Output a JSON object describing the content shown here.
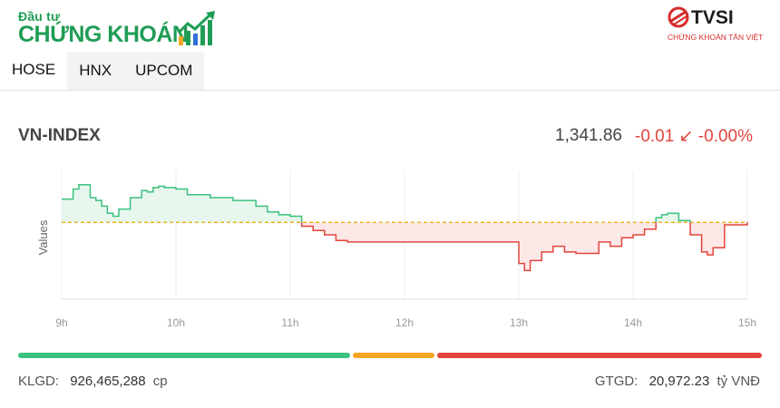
{
  "header": {
    "logo_top": "Đầu tư",
    "logo_main": "CHỨNG KHOÁN",
    "broker_name": "TVSI",
    "broker_sub": "CHỨNG KHOÁN TÂN VIỆT",
    "brand_green": "#1f9d55",
    "brand_red": "#d62b2b"
  },
  "tabs": [
    {
      "label": "HOSE",
      "active": true
    },
    {
      "label": "HNX",
      "active": false
    },
    {
      "label": "UPCOM",
      "active": false
    }
  ],
  "index": {
    "name": "VN-INDEX",
    "value": "1,341.86",
    "change": "-0.01",
    "arrow": "↙",
    "percent": "-0.00%"
  },
  "chart_data": {
    "type": "area",
    "ylabel": "Values",
    "baseline": 1341.87,
    "x_ticks": [
      "9h",
      "10h",
      "11h",
      "12h",
      "13h",
      "14h",
      "15h"
    ],
    "x_range": [
      9.0,
      15.0
    ],
    "ylim": [
      1336.5,
      1345.5
    ],
    "colors": {
      "up": "#3cc17e",
      "up_fill": "#e7f7ee",
      "down": "#e2453c",
      "down_fill": "#fde8e8",
      "ref": "#f0a500"
    },
    "x": [
      9.0,
      9.1,
      9.15,
      9.25,
      9.3,
      9.35,
      9.4,
      9.45,
      9.5,
      9.6,
      9.7,
      9.75,
      9.8,
      9.85,
      9.9,
      10.0,
      10.1,
      10.3,
      10.5,
      10.7,
      10.8,
      10.9,
      11.0,
      11.1,
      11.2,
      11.3,
      11.4,
      11.5,
      11.75,
      12.0,
      12.3,
      12.5,
      12.9,
      13.0,
      13.05,
      13.1,
      13.2,
      13.3,
      13.4,
      13.5,
      13.7,
      13.8,
      13.9,
      14.0,
      14.1,
      14.2,
      14.25,
      14.3,
      14.4,
      14.5,
      14.6,
      14.65,
      14.7,
      14.8,
      15.0
    ],
    "values": [
      1343.5,
      1344.2,
      1344.5,
      1343.6,
      1343.4,
      1343.0,
      1342.5,
      1342.3,
      1342.8,
      1343.6,
      1344.1,
      1344.0,
      1344.3,
      1344.4,
      1344.3,
      1344.2,
      1343.8,
      1343.6,
      1343.4,
      1343.0,
      1342.6,
      1342.4,
      1342.3,
      1341.6,
      1341.3,
      1341.0,
      1340.6,
      1340.5,
      1340.5,
      1340.5,
      1340.5,
      1340.5,
      1340.5,
      1339.0,
      1338.5,
      1339.2,
      1339.8,
      1340.2,
      1339.8,
      1339.7,
      1340.5,
      1340.2,
      1340.8,
      1341.0,
      1341.4,
      1342.2,
      1342.4,
      1342.5,
      1342.0,
      1341.0,
      1339.8,
      1339.6,
      1340.1,
      1341.7,
      1341.9
    ]
  },
  "breadth": {
    "up": 45,
    "unchanged": 11,
    "down": 44,
    "colors": {
      "up": "#3cc17e",
      "unchanged": "#f5a623",
      "down": "#e2453c"
    }
  },
  "footer": {
    "volume_label": "KLGD:",
    "volume_value": "926,465,288",
    "volume_unit": "cp",
    "trade_value_label": "GTGD:",
    "trade_value": "20,972.23",
    "trade_value_unit": "tỷ VNĐ"
  }
}
